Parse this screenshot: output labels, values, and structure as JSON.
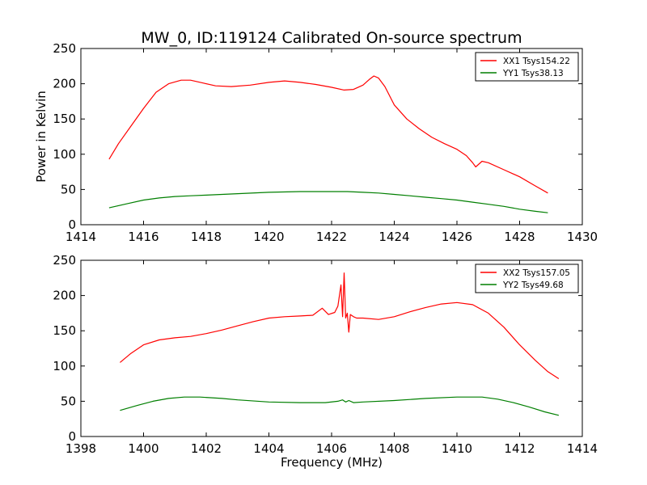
{
  "figure": {
    "title": "MW_0, ID:119124 Calibrated On-source spectrum",
    "xlabel": "Frequency (MHz)",
    "ylabel": "Power in Kelvin"
  },
  "colors": {
    "red": "#ff0000",
    "green": "#007f00"
  },
  "chart_data": [
    {
      "type": "line",
      "title": "MW_0, ID:119124 Calibrated On-source spectrum",
      "xlabel": "",
      "ylabel": "Power in Kelvin",
      "xlim": [
        1414,
        1430
      ],
      "ylim": [
        0,
        250
      ],
      "xticks": [
        "1414",
        "1416",
        "1418",
        "1420",
        "1422",
        "1424",
        "1426",
        "1428",
        "1430"
      ],
      "yticks": [
        "0",
        "50",
        "100",
        "150",
        "200",
        "250"
      ],
      "grid": false,
      "legend_position": "top-right",
      "series": [
        {
          "name": "XX1 Tsys154.22",
          "color": "#ff0000",
          "x": [
            1414.9,
            1415.2,
            1415.6,
            1416.0,
            1416.4,
            1416.8,
            1417.2,
            1417.5,
            1417.9,
            1418.3,
            1418.8,
            1419.4,
            1420.0,
            1420.5,
            1421.0,
            1421.5,
            1422.0,
            1422.4,
            1422.7,
            1423.0,
            1423.2,
            1423.35,
            1423.5,
            1423.7,
            1424.0,
            1424.4,
            1424.8,
            1425.2,
            1425.6,
            1426.0,
            1426.3,
            1426.5,
            1426.6,
            1426.8,
            1427.0,
            1427.5,
            1428.0,
            1428.5,
            1428.9
          ],
          "y": [
            93,
            115,
            140,
            165,
            188,
            200,
            205,
            205,
            201,
            197,
            196,
            198,
            202,
            204,
            202,
            199,
            195,
            191,
            192,
            198,
            206,
            211,
            208,
            196,
            170,
            150,
            136,
            124,
            115,
            107,
            98,
            88,
            82,
            90,
            88,
            78,
            68,
            55,
            45
          ]
        },
        {
          "name": "YY1 Tsys38.13",
          "color": "#007f00",
          "x": [
            1414.9,
            1415.5,
            1416.0,
            1416.5,
            1417.0,
            1417.5,
            1418.0,
            1419.0,
            1420.0,
            1421.0,
            1422.0,
            1422.5,
            1423.0,
            1423.5,
            1424.0,
            1424.5,
            1425.0,
            1425.5,
            1426.0,
            1426.5,
            1427.0,
            1427.5,
            1428.0,
            1428.5,
            1428.9
          ],
          "y": [
            24,
            30,
            35,
            38,
            40,
            41,
            42,
            44,
            46,
            47,
            47,
            47,
            46,
            45,
            43,
            41,
            39,
            37,
            35,
            32,
            29,
            26,
            22,
            19,
            17
          ]
        }
      ]
    },
    {
      "type": "line",
      "title": "",
      "xlabel": "Frequency (MHz)",
      "ylabel": "",
      "xlim": [
        1398,
        1414
      ],
      "ylim": [
        0,
        250
      ],
      "xticks": [
        "1398",
        "1400",
        "1402",
        "1404",
        "1406",
        "1408",
        "1410",
        "1412",
        "1414"
      ],
      "yticks": [
        "0",
        "50",
        "100",
        "150",
        "200",
        "250"
      ],
      "grid": false,
      "legend_position": "top-right",
      "series": [
        {
          "name": "XX2 Tsys157.05",
          "color": "#ff0000",
          "x": [
            1399.25,
            1399.6,
            1400.0,
            1400.5,
            1401.0,
            1401.5,
            1402.0,
            1402.5,
            1403.0,
            1403.5,
            1404.0,
            1404.5,
            1405.0,
            1405.4,
            1405.7,
            1405.9,
            1406.1,
            1406.2,
            1406.3,
            1406.35,
            1406.4,
            1406.45,
            1406.5,
            1406.55,
            1406.6,
            1406.7,
            1406.8,
            1407.0,
            1407.5,
            1408.0,
            1408.5,
            1409.0,
            1409.5,
            1410.0,
            1410.5,
            1411.0,
            1411.5,
            1412.0,
            1412.5,
            1412.9,
            1413.25
          ],
          "y": [
            105,
            118,
            130,
            137,
            140,
            142,
            146,
            151,
            157,
            163,
            168,
            170,
            171,
            172,
            182,
            173,
            176,
            185,
            215,
            170,
            232,
            168,
            175,
            148,
            173,
            170,
            168,
            168,
            166,
            170,
            177,
            183,
            188,
            190,
            187,
            175,
            155,
            130,
            108,
            92,
            82
          ]
        },
        {
          "name": "YY2 Tsys49.68",
          "color": "#007f00",
          "x": [
            1399.25,
            1399.8,
            1400.3,
            1400.8,
            1401.3,
            1401.8,
            1402.5,
            1403.0,
            1404.0,
            1405.0,
            1405.8,
            1406.2,
            1406.35,
            1406.45,
            1406.55,
            1406.7,
            1407.0,
            1408.0,
            1409.0,
            1410.0,
            1410.8,
            1411.3,
            1411.8,
            1412.3,
            1412.8,
            1413.25
          ],
          "y": [
            37,
            44,
            50,
            54,
            56,
            56,
            54,
            52,
            49,
            48,
            48,
            50,
            52,
            49,
            51,
            48,
            49,
            51,
            54,
            56,
            56,
            53,
            48,
            42,
            35,
            30
          ]
        }
      ]
    }
  ]
}
